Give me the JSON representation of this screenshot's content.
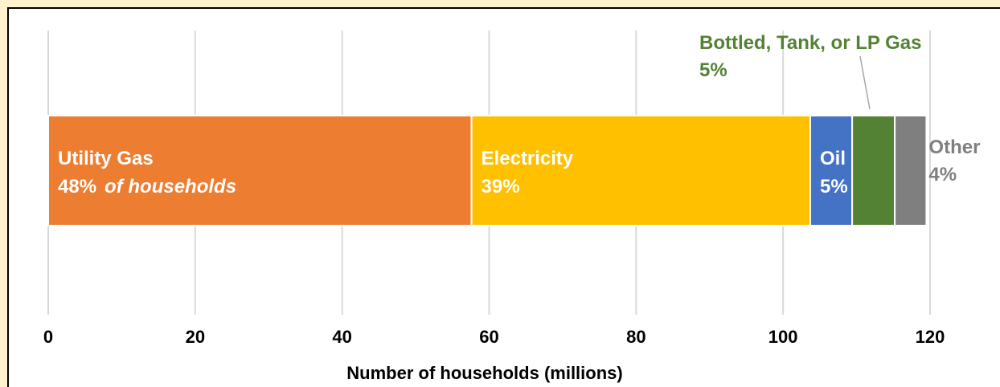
{
  "chart_data": {
    "type": "bar",
    "orientation": "horizontal",
    "stacked": true,
    "xlabel": "Number of households (millions)",
    "xlim": [
      0,
      120
    ],
    "xticks": [
      0,
      20,
      40,
      60,
      80,
      100,
      120
    ],
    "xtick_labels": [
      "0",
      "20",
      "40",
      "60",
      "80",
      "100",
      "120"
    ],
    "grid": true,
    "series": [
      {
        "name": "Utility Gas",
        "value": 57.6,
        "label_line1": "Utility Gas",
        "label_line2_value": "48%",
        "label_line2_suffix": "of households",
        "color": "#ed7d31",
        "label_color": "#ffffff",
        "label_position": "inside"
      },
      {
        "name": "Electricity",
        "value": 46.1,
        "label_line1": "Electricity",
        "label_line2_value": "39%",
        "label_line2_suffix": "",
        "color": "#ffc000",
        "label_color": "#ffffff",
        "label_position": "inside"
      },
      {
        "name": "Oil",
        "value": 5.7,
        "label_line1": "Oil",
        "label_line2_value": "5%",
        "label_line2_suffix": "",
        "color": "#4472c4",
        "label_color": "#ffffff",
        "label_position": "inside"
      },
      {
        "name": "Bottled, Tank, or LP Gas",
        "value": 5.8,
        "label_line1": "Bottled, Tank, or LP Gas",
        "label_line2_value": "5%",
        "label_line2_suffix": "",
        "color": "#548235",
        "label_color": "#548235",
        "label_position": "above-callout"
      },
      {
        "name": "Other",
        "value": 4.3,
        "label_line1": "Other",
        "label_line2_value": "4%",
        "label_line2_suffix": "",
        "color": "#7f7f7f",
        "label_color": "#7f7f7f",
        "label_position": "right"
      }
    ]
  }
}
